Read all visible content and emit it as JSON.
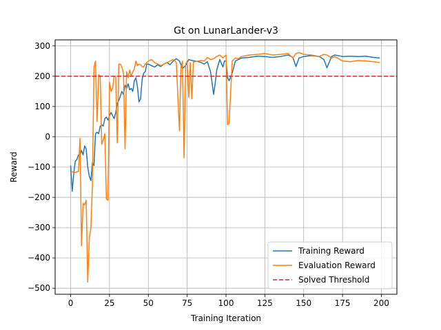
{
  "chart_data": {
    "type": "line",
    "title": "Gt on LunarLander-v3",
    "xlabel": "Training Iteration",
    "ylabel": "Reward",
    "xlim": [
      -10,
      210
    ],
    "ylim": [
      -520,
      320
    ],
    "xticks": [
      0,
      25,
      50,
      75,
      100,
      125,
      150,
      175,
      200
    ],
    "yticks": [
      -500,
      -400,
      -300,
      -200,
      -100,
      0,
      100,
      200,
      300
    ],
    "grid": true,
    "legend_position": "lower-right",
    "threshold": {
      "name": "Solved Threshold",
      "value": 200,
      "color": "#d62728"
    },
    "series": [
      {
        "name": "Training Reward",
        "color": "#1f77b4",
        "x": [
          0,
          1,
          2,
          3,
          4,
          5,
          6,
          7,
          8,
          9,
          10,
          11,
          12,
          13,
          14,
          15,
          16,
          17,
          18,
          19,
          20,
          21,
          22,
          23,
          24,
          25,
          26,
          27,
          28,
          29,
          30,
          31,
          32,
          33,
          34,
          35,
          36,
          37,
          38,
          39,
          40,
          41,
          42,
          43,
          44,
          45,
          46,
          47,
          48,
          49,
          50,
          52,
          54,
          56,
          58,
          60,
          62,
          64,
          66,
          68,
          70,
          72,
          74,
          76,
          78,
          80,
          82,
          84,
          86,
          88,
          90,
          91,
          92,
          93,
          94,
          96,
          98,
          99,
          100,
          101,
          102,
          104,
          106,
          108,
          110,
          115,
          120,
          125,
          130,
          135,
          140,
          143,
          145,
          147,
          150,
          155,
          160,
          163,
          165,
          168,
          170,
          175,
          180,
          185,
          190,
          195,
          199
        ],
        "values": [
          -95,
          -180,
          -120,
          -80,
          -75,
          -60,
          -60,
          -45,
          -60,
          -30,
          -40,
          -100,
          -130,
          -145,
          -85,
          -95,
          10,
          15,
          10,
          35,
          40,
          35,
          60,
          65,
          55,
          70,
          80,
          70,
          60,
          80,
          110,
          120,
          135,
          150,
          140,
          170,
          160,
          175,
          155,
          160,
          150,
          185,
          195,
          165,
          115,
          125,
          190,
          210,
          215,
          240,
          240,
          235,
          230,
          238,
          232,
          240,
          245,
          238,
          250,
          258,
          250,
          225,
          235,
          255,
          252,
          250,
          248,
          245,
          240,
          248,
          215,
          180,
          140,
          175,
          220,
          255,
          230,
          250,
          250,
          195,
          185,
          210,
          250,
          255,
          260,
          262,
          266,
          265,
          262,
          265,
          270,
          262,
          232,
          260,
          265,
          268,
          265,
          255,
          228,
          265,
          270,
          265,
          266,
          265,
          266,
          262,
          260
        ]
      },
      {
        "name": "Evaluation Reward",
        "color": "#ff7f0e",
        "x": [
          0,
          1,
          2,
          3,
          4,
          5,
          6,
          7,
          8,
          9,
          10,
          11,
          12,
          13,
          14,
          15,
          16,
          17,
          18,
          19,
          20,
          21,
          22,
          23,
          24,
          25,
          26,
          27,
          28,
          29,
          30,
          31,
          32,
          33,
          34,
          35,
          36,
          37,
          38,
          39,
          40,
          41,
          42,
          43,
          44,
          45,
          46,
          47,
          48,
          49,
          50,
          52,
          54,
          56,
          58,
          60,
          62,
          64,
          66,
          68,
          70,
          71,
          72,
          73,
          74,
          75,
          76,
          77,
          78,
          79,
          80,
          82,
          84,
          86,
          88,
          90,
          92,
          94,
          96,
          98,
          100,
          101,
          102,
          104,
          106,
          108,
          110,
          115,
          120,
          125,
          130,
          135,
          140,
          143,
          145,
          147,
          150,
          155,
          160,
          163,
          165,
          168,
          170,
          175,
          180,
          185,
          190,
          195,
          199
        ],
        "values": [
          -120,
          -115,
          -118,
          -118,
          -115,
          -115,
          -5,
          -360,
          -220,
          -225,
          -210,
          -480,
          -335,
          -300,
          -160,
          230,
          250,
          50,
          205,
          200,
          -25,
          -10,
          10,
          -205,
          -210,
          180,
          150,
          160,
          200,
          200,
          -20,
          240,
          240,
          230,
          210,
          -40,
          215,
          195,
          220,
          200,
          215,
          225,
          250,
          235,
          240,
          238,
          232,
          230,
          240,
          245,
          250,
          255,
          245,
          240,
          235,
          240,
          245,
          250,
          255,
          245,
          20,
          230,
          250,
          -70,
          240,
          250,
          130,
          245,
          125,
          248,
          248,
          250,
          252,
          250,
          262,
          255,
          258,
          265,
          270,
          260,
          270,
          40,
          45,
          250,
          260,
          258,
          265,
          270,
          272,
          275,
          270,
          272,
          275,
          260,
          275,
          278,
          272,
          270,
          265,
          272,
          270,
          260,
          265,
          250,
          248,
          252,
          250,
          248,
          245
        ]
      }
    ]
  }
}
